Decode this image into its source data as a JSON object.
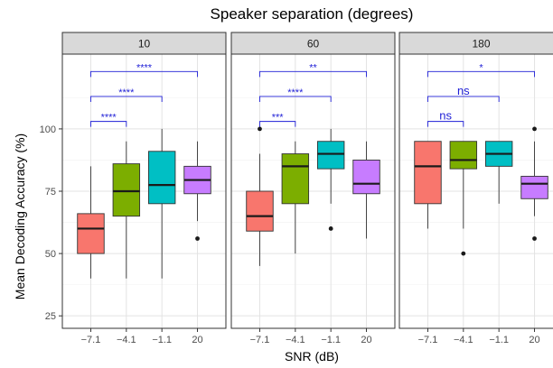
{
  "chart_data": {
    "type": "boxplot",
    "title": "Speaker separation (degrees)",
    "xlabel": "SNR (dB)",
    "ylabel": "Mean Decoding Accuracy (%)",
    "ylim": [
      20,
      130
    ],
    "y_ticks": [
      25,
      50,
      75,
      100
    ],
    "categories": [
      "−7.1",
      "−4.1",
      "−1.1",
      "20"
    ],
    "colors": [
      "#f8766d",
      "#7cae00",
      "#00bfc4",
      "#c77cff"
    ],
    "grid": true,
    "panels": [
      {
        "label": "10",
        "boxes": [
          {
            "min": 40,
            "q1": 50,
            "median": 60,
            "q3": 66,
            "max": 85,
            "outliers": []
          },
          {
            "min": 40,
            "q1": 65,
            "median": 75,
            "q3": 86,
            "max": 95,
            "outliers": []
          },
          {
            "min": 40,
            "q1": 70,
            "median": 77.5,
            "q3": 91,
            "max": 100,
            "outliers": []
          },
          {
            "min": 63,
            "q1": 74,
            "median": 79.5,
            "q3": 85,
            "max": 95,
            "outliers": [
              56
            ]
          }
        ],
        "comparisons": [
          {
            "from": 0,
            "to": 1,
            "y": 103,
            "label": "****"
          },
          {
            "from": 0,
            "to": 2,
            "y": 113,
            "label": "****"
          },
          {
            "from": 0,
            "to": 3,
            "y": 123,
            "label": "****"
          }
        ]
      },
      {
        "label": "60",
        "boxes": [
          {
            "min": 45,
            "q1": 59,
            "median": 65,
            "q3": 75,
            "max": 90,
            "outliers": [
              100
            ]
          },
          {
            "min": 50,
            "q1": 70,
            "median": 85,
            "q3": 90,
            "max": 95,
            "outliers": []
          },
          {
            "min": 70,
            "q1": 84,
            "median": 90,
            "q3": 95,
            "max": 100,
            "outliers": [
              60
            ]
          },
          {
            "min": 56,
            "q1": 74,
            "median": 78,
            "q3": 87.5,
            "max": 95,
            "outliers": []
          }
        ],
        "comparisons": [
          {
            "from": 0,
            "to": 1,
            "y": 103,
            "label": "***"
          },
          {
            "from": 0,
            "to": 2,
            "y": 113,
            "label": "****"
          },
          {
            "from": 0,
            "to": 3,
            "y": 123,
            "label": "**"
          }
        ]
      },
      {
        "label": "180",
        "boxes": [
          {
            "min": 60,
            "q1": 70,
            "median": 85,
            "q3": 95,
            "max": 95,
            "outliers": []
          },
          {
            "min": 60,
            "q1": 84,
            "median": 87.5,
            "q3": 95,
            "max": 95,
            "outliers": [
              50
            ]
          },
          {
            "min": 70,
            "q1": 85,
            "median": 90,
            "q3": 95,
            "max": 95,
            "outliers": []
          },
          {
            "min": 65,
            "q1": 72,
            "median": 78,
            "q3": 81,
            "max": 95,
            "outliers": [
              100,
              56
            ]
          }
        ],
        "comparisons": [
          {
            "from": 0,
            "to": 1,
            "y": 103,
            "label": "ns"
          },
          {
            "from": 0,
            "to": 2,
            "y": 113,
            "label": "ns"
          },
          {
            "from": 0,
            "to": 3,
            "y": 123,
            "label": "*"
          }
        ]
      }
    ]
  }
}
